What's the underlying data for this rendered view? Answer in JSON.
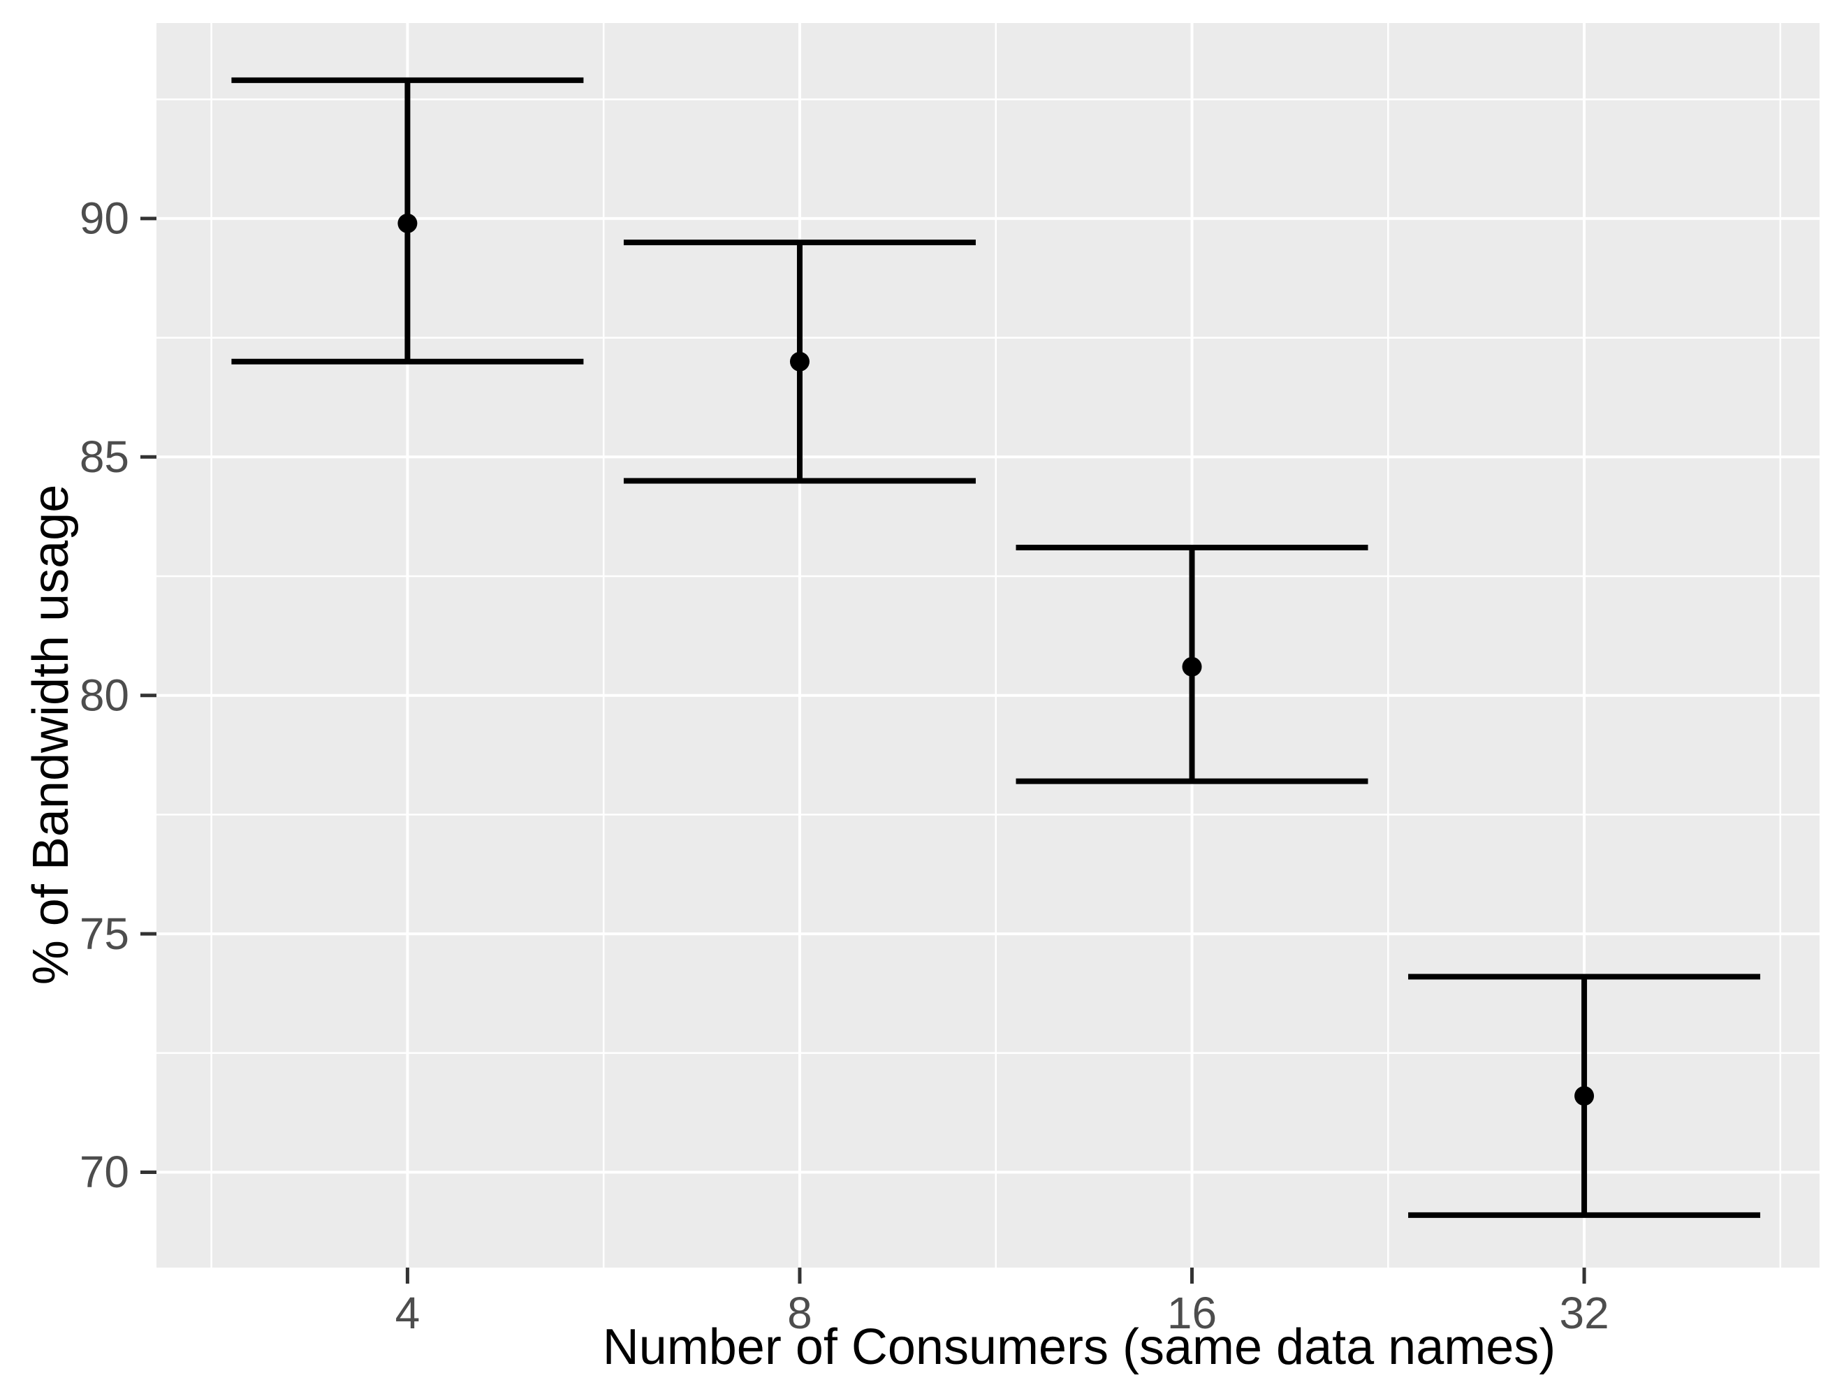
{
  "chart_data": {
    "type": "scatter",
    "subtype": "points-with-errorbars",
    "title": "",
    "xlabel": "Number of Consumers (same data names)",
    "ylabel": "% of Bandwidth usage",
    "x_scale": "log2",
    "categories": [
      4,
      8,
      16,
      32
    ],
    "series": [
      {
        "name": "% of Bandwidth usage",
        "points": [
          {
            "x": 4,
            "mean": 89.9,
            "lower": 87.0,
            "upper": 92.9
          },
          {
            "x": 8,
            "mean": 87.0,
            "lower": 84.5,
            "upper": 89.5
          },
          {
            "x": 16,
            "mean": 80.6,
            "lower": 78.2,
            "upper": 83.1
          },
          {
            "x": 32,
            "mean": 71.6,
            "lower": 69.1,
            "upper": 74.1
          }
        ]
      }
    ],
    "x_tick_labels": [
      "4",
      "8",
      "16",
      "32"
    ],
    "y_tick_labels": [
      "70",
      "75",
      "80",
      "85",
      "90"
    ],
    "y_major_breaks": [
      70,
      75,
      80,
      85,
      90
    ],
    "y_minor_breaks": [
      72.5,
      77.5,
      82.5,
      87.5,
      92.5
    ],
    "x_major_breaks_log2": [
      2,
      3,
      4,
      5
    ],
    "x_minor_breaks_log2": [
      1.5,
      2.5,
      3.5,
      4.5,
      5.5
    ],
    "ylim": [
      68.0,
      94.1
    ],
    "xlim_log2": [
      1.36,
      5.6
    ],
    "grid": "major+minor",
    "legend": "none",
    "theme": "ggplot-grey",
    "colors": {
      "figure_background": "#FFFFFF",
      "panel_background": "#EBEBEB",
      "grid": "#FFFFFF",
      "points": "#000000",
      "errorbars": "#000000",
      "tick_text": "#4D4D4D",
      "tick_mark": "#333333",
      "axis_title": "#000000"
    }
  }
}
